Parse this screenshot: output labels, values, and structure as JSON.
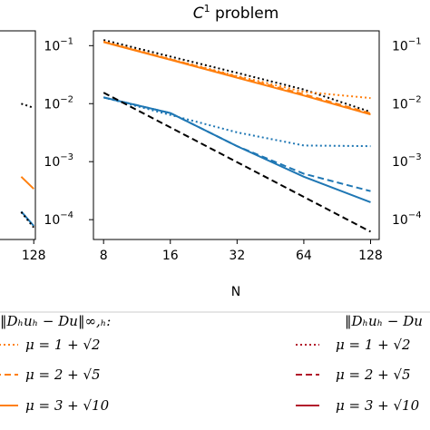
{
  "chart_data": [
    {
      "type": "line",
      "title": "",
      "xlabel": "",
      "ylabel": "",
      "x_scale": "log2",
      "y_scale": "log10",
      "xlim": [
        7.2,
        140
      ],
      "ylim": [
        4.55e-05,
        0.18
      ],
      "x_ticks": [
        128
      ],
      "x_tick_labels": [
        "128"
      ],
      "series": [
        {
          "color": "#000000",
          "style": "dotted",
          "x": [
            64,
            128
          ],
          "y": [
            0.01,
            0.0085
          ]
        },
        {
          "color": "#ff7f0e",
          "style": "solid",
          "x": [
            64,
            128
          ],
          "y": [
            0.00055,
            0.00034
          ]
        },
        {
          "color": "#1f77b4",
          "style": "solid",
          "x": [
            64,
            128
          ],
          "y": [
            0.000138,
            7.82e-05
          ]
        },
        {
          "color": "#000000",
          "style": "dotted",
          "x": [
            64,
            128
          ],
          "y": [
            0.000135,
            7.32e-05
          ]
        }
      ]
    },
    {
      "type": "line",
      "title": "C¹ problem",
      "xlabel": "N",
      "ylabel": "",
      "x_scale": "log2",
      "y_scale": "log10",
      "xlim": [
        7.2,
        140
      ],
      "ylim": [
        4.55e-05,
        0.18
      ],
      "x_ticks": [
        8,
        16,
        32,
        64,
        128
      ],
      "x_tick_labels": [
        "8",
        "16",
        "32",
        "64",
        "128"
      ],
      "y_ticks": [
        0.0001,
        0.001,
        0.01,
        0.1
      ],
      "y_tick_labels": [
        "10−4",
        "10−3",
        "10−2",
        "10−1"
      ],
      "series": [
        {
          "color": "#000000",
          "style": "dotted",
          "x": [
            8,
            16,
            32,
            64,
            128
          ],
          "y": [
            0.125,
            0.065,
            0.034,
            0.0175,
            0.0072
          ]
        },
        {
          "color": "#ff7f0e",
          "style": "dotted",
          "x": [
            8,
            16,
            32,
            64,
            128
          ],
          "y": [
            0.118,
            0.059,
            0.03,
            0.016,
            0.0125
          ]
        },
        {
          "color": "#ff7f0e",
          "style": "dashed",
          "x": [
            8,
            16,
            32,
            64,
            128
          ],
          "y": [
            0.116,
            0.058,
            0.029,
            0.0145,
            0.0068
          ]
        },
        {
          "color": "#ff7f0e",
          "style": "solid",
          "x": [
            8,
            16,
            32,
            64,
            128
          ],
          "y": [
            0.115,
            0.057,
            0.028,
            0.0138,
            0.0065
          ]
        },
        {
          "color": "#1f77b4",
          "style": "dotted",
          "x": [
            8,
            16,
            32,
            64,
            128
          ],
          "y": [
            0.0128,
            0.0064,
            0.0032,
            0.0019,
            0.00185
          ]
        },
        {
          "color": "#1f77b4",
          "style": "dashed",
          "x": [
            8,
            16,
            32,
            64,
            128
          ],
          "y": [
            0.0128,
            0.0069,
            0.00185,
            0.00062,
            0.00031
          ]
        },
        {
          "color": "#1f77b4",
          "style": "solid",
          "x": [
            8,
            16,
            32,
            64,
            128
          ],
          "y": [
            0.0128,
            0.0069,
            0.00185,
            0.00055,
            0.0002
          ]
        },
        {
          "color": "#000000",
          "style": "dashed",
          "x": [
            8,
            128
          ],
          "y": [
            0.0155,
            6.2e-05
          ]
        }
      ]
    },
    {
      "type": "line",
      "title": "",
      "xlabel": "",
      "ylabel": "",
      "y_ticks": [
        0.0001,
        0.001,
        0.01,
        0.1
      ],
      "y_tick_labels": [
        "10−4",
        "10−3",
        "10−2",
        "10−1"
      ],
      "series": []
    }
  ],
  "legend": {
    "left_heading": "‖Dₕuₕ − Du‖∞,ₕ:",
    "right_heading": "‖Dₕuₕ − Du",
    "left_entries": [
      {
        "label": "μ = 1 + √2",
        "color": "#ff7f0e",
        "style": "dotted"
      },
      {
        "label": "μ = 2 + √5",
        "color": "#ff7f0e",
        "style": "dashed"
      },
      {
        "label": "μ = 3 + √10",
        "color": "#ff7f0e",
        "style": "solid"
      }
    ],
    "right_entries": [
      {
        "label": "μ = 1 + √2",
        "color": "#b2182b",
        "style": "dotted"
      },
      {
        "label": "μ = 2 + √5",
        "color": "#b2182b",
        "style": "dashed"
      },
      {
        "label": "μ = 3 + √10",
        "color": "#b2182b",
        "style": "solid"
      }
    ]
  }
}
